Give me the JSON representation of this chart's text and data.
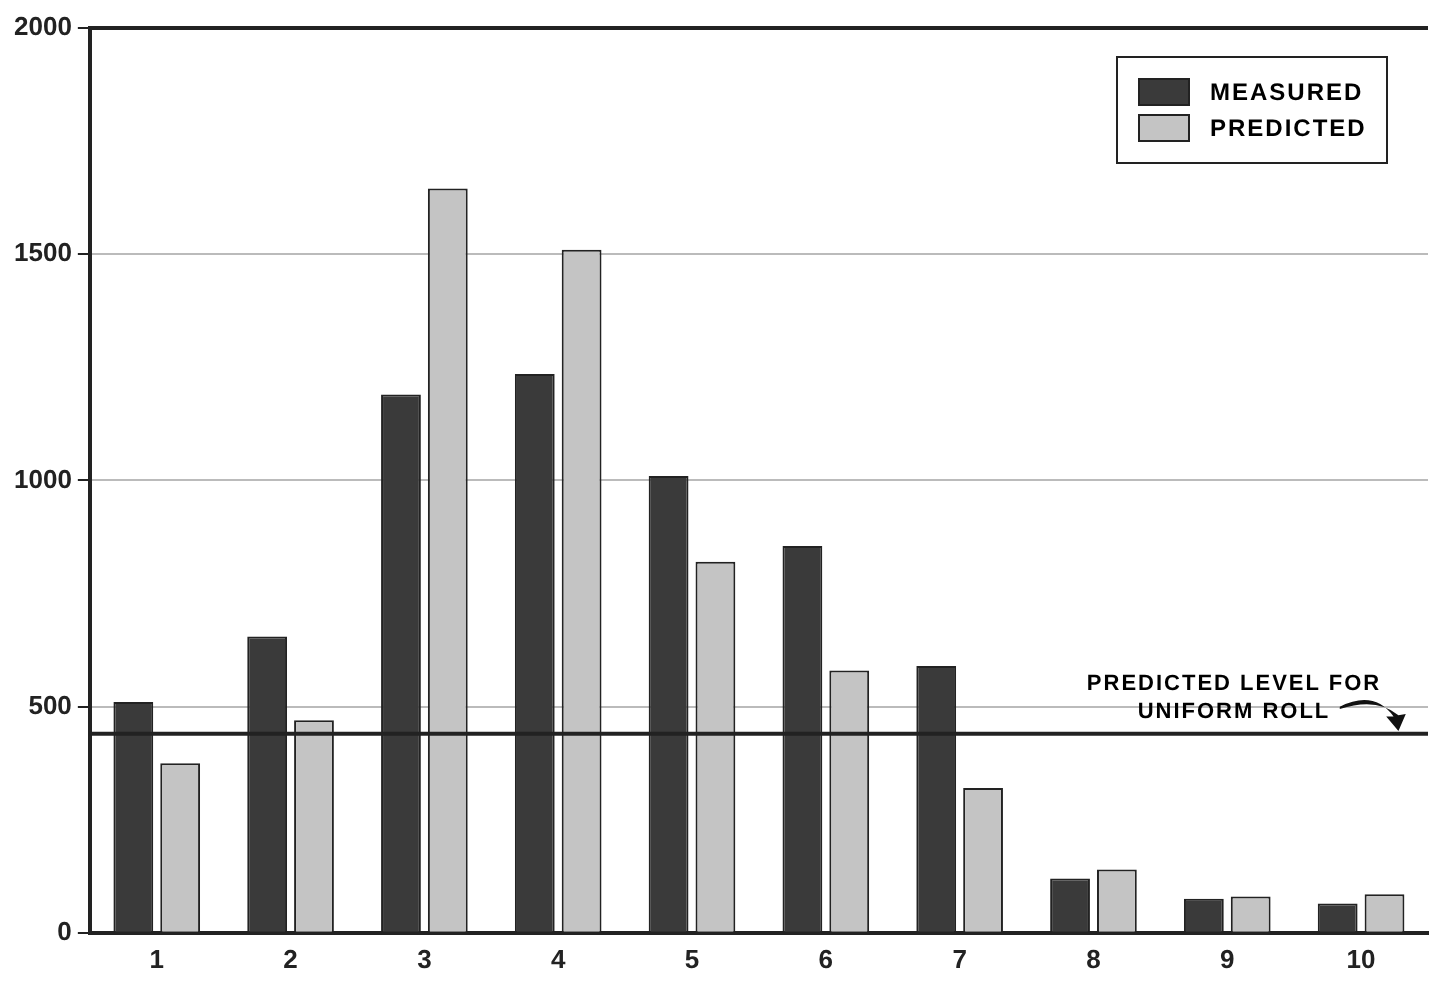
{
  "chart_data": {
    "type": "bar",
    "categories": [
      "1",
      "2",
      "3",
      "4",
      "5",
      "6",
      "7",
      "8",
      "9",
      "10"
    ],
    "series": [
      {
        "name": "MEASURED",
        "color": "#3a3a3a",
        "values": [
          510,
          655,
          1190,
          1235,
          1010,
          855,
          590,
          120,
          75,
          65
        ]
      },
      {
        "name": "PREDICTED",
        "color": "#c4c4c4",
        "values": [
          375,
          470,
          1645,
          1510,
          820,
          580,
          320,
          140,
          80,
          85
        ]
      }
    ],
    "ylim": [
      0,
      2000
    ],
    "yticks": [
      0,
      500,
      1000,
      1500,
      2000
    ],
    "grid": "y",
    "legend": "top right",
    "ref_lines": [
      {
        "axis": "y",
        "value": 440,
        "label": "PREDICTED LEVEL FOR UNIFORM ROLL",
        "color": "#222222"
      }
    ]
  }
}
